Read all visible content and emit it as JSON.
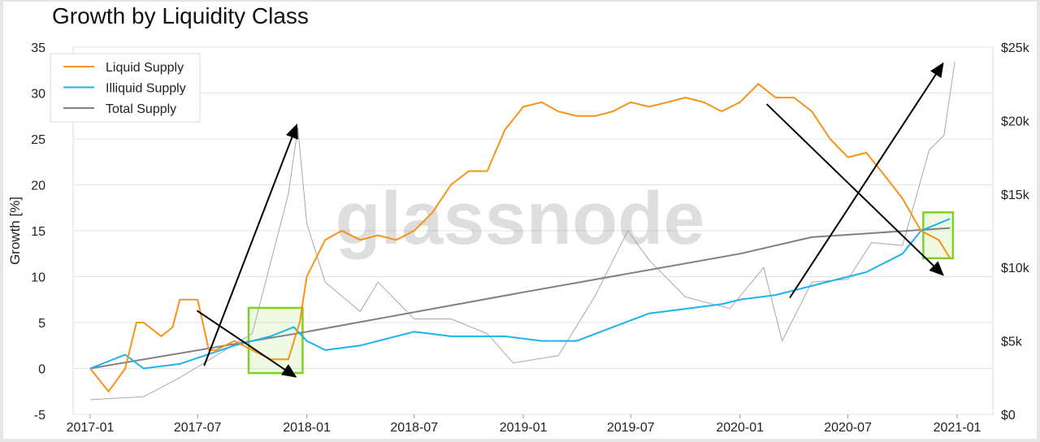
{
  "chart_data": {
    "type": "line",
    "title": "Growth by Liquidity Class",
    "ylabel": "Growth [%]",
    "ylim": [
      -5,
      35
    ],
    "y2lim": [
      0,
      25000
    ],
    "xlim": [
      "2017-01-01",
      "2021-01-01"
    ],
    "grid": true,
    "legend": "top-left",
    "watermark": "glassnode",
    "x_ticks": [
      "2017-01",
      "2017-07",
      "2018-01",
      "2018-07",
      "2019-01",
      "2019-07",
      "2020-01",
      "2020-07",
      "2021-01"
    ],
    "y_ticks": [
      "-5",
      "0",
      "5",
      "10",
      "15",
      "20",
      "25",
      "30",
      "35"
    ],
    "y2_ticks": [
      "$0",
      "$5k",
      "$10k",
      "$15k",
      "$20k",
      "$25k"
    ],
    "series": [
      {
        "name": "Liquid Supply",
        "color": "#f7931a",
        "axis": "left",
        "x": [
          "2017-01-01",
          "2017-02-01",
          "2017-03-01",
          "2017-03-20",
          "2017-04-01",
          "2017-05-01",
          "2017-05-20",
          "2017-06-01",
          "2017-07-01",
          "2017-07-20",
          "2017-08-01",
          "2017-09-01",
          "2017-10-01",
          "2017-11-01",
          "2017-12-01",
          "2017-12-20",
          "2018-01-01",
          "2018-02-01",
          "2018-03-01",
          "2018-04-01",
          "2018-05-01",
          "2018-06-01",
          "2018-07-01",
          "2018-08-01",
          "2018-09-01",
          "2018-10-01",
          "2018-11-01",
          "2018-12-01",
          "2019-01-01",
          "2019-02-01",
          "2019-03-01",
          "2019-04-01",
          "2019-05-01",
          "2019-06-01",
          "2019-07-01",
          "2019-08-01",
          "2019-09-01",
          "2019-10-01",
          "2019-11-01",
          "2019-12-01",
          "2020-01-01",
          "2020-02-01",
          "2020-03-01",
          "2020-04-01",
          "2020-05-01",
          "2020-06-01",
          "2020-07-01",
          "2020-08-01",
          "2020-09-01",
          "2020-10-01",
          "2020-11-01",
          "2020-12-01",
          "2020-12-20"
        ],
        "values": [
          0,
          -2.5,
          0,
          5,
          5,
          3.5,
          4.5,
          7.5,
          7.5,
          2,
          2,
          3,
          2,
          1,
          1,
          5,
          10,
          14,
          15,
          14,
          14.5,
          14,
          15,
          17,
          20,
          21.5,
          21.5,
          26,
          28.5,
          29,
          28,
          27.5,
          27.5,
          28,
          29,
          28.5,
          29,
          29.5,
          29,
          28,
          29,
          31,
          29.5,
          29.5,
          28,
          25,
          23,
          23.5,
          21,
          18.5,
          15,
          14,
          12
        ]
      },
      {
        "name": "Illiquid Supply",
        "color": "#1fb3ed",
        "axis": "left",
        "x": [
          "2017-01-01",
          "2017-03-01",
          "2017-04-01",
          "2017-06-01",
          "2017-09-01",
          "2017-11-01",
          "2017-12-10",
          "2018-01-01",
          "2018-02-01",
          "2018-04-01",
          "2018-06-01",
          "2018-07-01",
          "2018-09-01",
          "2018-12-01",
          "2019-02-01",
          "2019-04-01",
          "2019-06-01",
          "2019-08-01",
          "2019-10-01",
          "2019-12-01",
          "2020-01-01",
          "2020-03-01",
          "2020-06-01",
          "2020-08-01",
          "2020-10-01",
          "2020-11-01",
          "2020-12-20"
        ],
        "values": [
          0,
          1.5,
          0,
          0.5,
          2.5,
          3.5,
          4.5,
          3,
          2,
          2.5,
          3.5,
          4,
          3.5,
          3.5,
          3,
          3,
          4.5,
          6,
          6.5,
          7,
          7.5,
          8,
          9.5,
          10.5,
          12.5,
          15,
          16.3
        ]
      },
      {
        "name": "Total Supply",
        "color": "#808080",
        "axis": "left",
        "x": [
          "2017-01-01",
          "2018-01-01",
          "2019-01-01",
          "2020-01-01",
          "2020-05-01",
          "2020-12-20"
        ],
        "values": [
          0,
          4,
          8.3,
          12.5,
          14.3,
          15.3
        ]
      },
      {
        "color": "#a8a8a8",
        "axis": "right",
        "x": [
          "2017-01-01",
          "2017-04-01",
          "2017-06-01",
          "2017-08-01",
          "2017-10-01",
          "2017-12-01",
          "2017-12-17",
          "2018-01-01",
          "2018-02-01",
          "2018-04-01",
          "2018-05-01",
          "2018-07-01",
          "2018-09-01",
          "2018-11-01",
          "2018-12-15",
          "2019-03-01",
          "2019-05-01",
          "2019-06-26",
          "2019-08-01",
          "2019-10-01",
          "2019-12-15",
          "2020-02-10",
          "2020-03-12",
          "2020-05-01",
          "2020-07-01",
          "2020-08-10",
          "2020-10-01",
          "2020-11-15",
          "2020-12-10",
          "2020-12-28"
        ],
        "values": [
          1000,
          1200,
          2500,
          4000,
          5500,
          15000,
          19500,
          13000,
          9000,
          7000,
          9000,
          6500,
          6500,
          5500,
          3500,
          4000,
          8000,
          12500,
          10500,
          8000,
          7200,
          10000,
          5000,
          9000,
          9200,
          11700,
          11500,
          18000,
          19000,
          24000
        ]
      }
    ],
    "annotations": {
      "boxes": [
        {
          "x0": "2017-09-25",
          "x1": "2017-12-25",
          "y0": -0.5,
          "y1": 6.6,
          "color": "#7ed321"
        },
        {
          "x0": "2020-11-05",
          "x1": "2020-12-25",
          "y0": 12,
          "y1": 17,
          "color": "#7ed321"
        }
      ],
      "arrows": [
        {
          "from": [
            "2017-07-12",
            0.3
          ],
          "to": [
            "2017-12-15",
            26.5
          ]
        },
        {
          "from": [
            "2017-06-30",
            6.3
          ],
          "to": [
            "2017-12-13",
            -0.9
          ]
        },
        {
          "from": [
            "2020-02-15",
            28.8
          ],
          "to": [
            "2020-12-08",
            10.2
          ]
        },
        {
          "from": [
            "2020-03-25",
            7.7
          ],
          "to": [
            "2020-12-08",
            33.2
          ]
        }
      ]
    }
  }
}
